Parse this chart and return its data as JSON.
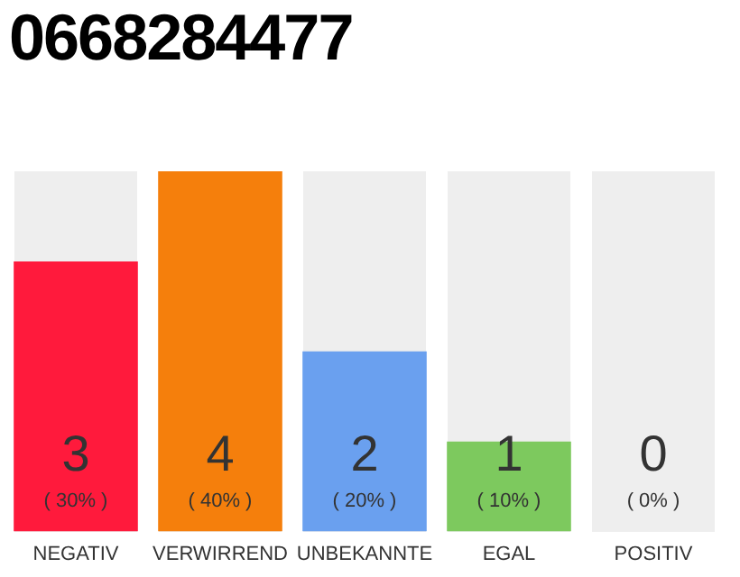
{
  "chart_data": {
    "type": "bar",
    "title": "0668284477",
    "categories": [
      "NEGATIV",
      "VERWIRREND",
      "UNBEKANNTE",
      "EGAL",
      "POSITIV"
    ],
    "values": [
      3,
      4,
      2,
      1,
      0
    ],
    "colors": [
      "#ff1a3c",
      "#f57f0c",
      "#6aa0ef",
      "#7dc95e",
      "#bdbdbd"
    ],
    "data_labels": true,
    "annotations": [
      "( 30% )",
      "( 40% )",
      "( 20% )",
      "( 10% )",
      "( 0% )"
    ],
    "legend": false,
    "grid": false
  }
}
